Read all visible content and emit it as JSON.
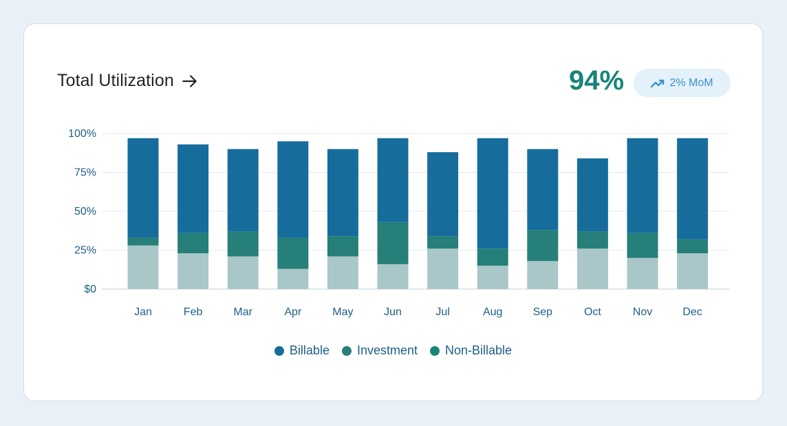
{
  "header": {
    "title": "Total Utilization",
    "kpi_value": "94%",
    "badge_text": "2% MoM"
  },
  "colors": {
    "billable": "#166d9c",
    "investment": "#267f78",
    "non_billable": "#a9c7c8",
    "kpi": "#17857a",
    "badge_bg": "#e3f1fb",
    "badge_text": "#3d8fc4"
  },
  "chart_data": {
    "type": "bar",
    "stacked": true,
    "categories": [
      "Jan",
      "Feb",
      "Mar",
      "Apr",
      "May",
      "Jun",
      "Jul",
      "Aug",
      "Sep",
      "Oct",
      "Nov",
      "Dec"
    ],
    "series": [
      {
        "name": "Non-Billable",
        "values": [
          28,
          23,
          21,
          13,
          21,
          16,
          26,
          15,
          18,
          26,
          20,
          23
        ]
      },
      {
        "name": "Investment",
        "values": [
          5,
          13,
          16,
          20,
          13,
          27,
          8,
          11,
          20,
          11,
          16,
          9
        ]
      },
      {
        "name": "Billable",
        "values": [
          64,
          57,
          53,
          62,
          56,
          54,
          54,
          71,
          52,
          47,
          61,
          65
        ]
      }
    ],
    "y_ticks": [
      "$0",
      "25%",
      "50%",
      "75%",
      "100%"
    ],
    "y_tick_values": [
      0,
      25,
      50,
      75,
      100
    ],
    "ylim": [
      0,
      100
    ],
    "grid": true,
    "legend": {
      "placement": "bottom",
      "items": [
        "Billable",
        "Investment",
        "Non-Billable"
      ]
    }
  }
}
